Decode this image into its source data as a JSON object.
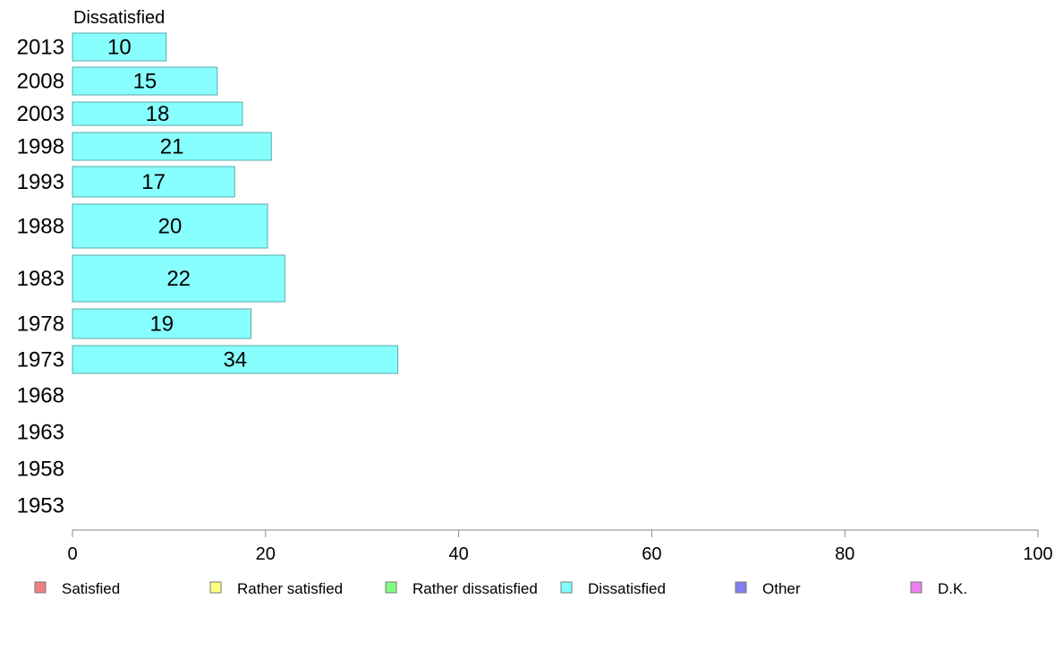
{
  "chart_data": {
    "type": "bar",
    "orientation": "horizontal",
    "title": "Dissatisfied",
    "categories": [
      "2013",
      "2008",
      "2003",
      "1998",
      "1993",
      "1988",
      "1983",
      "1978",
      "1973",
      "1968",
      "1963",
      "1958",
      "1953"
    ],
    "series": [
      {
        "name": "Dissatisfied",
        "values": [
          10,
          15,
          18,
          21,
          17,
          20,
          22,
          19,
          34,
          null,
          null,
          null,
          null
        ],
        "labels": [
          "10",
          "15",
          "18",
          "21",
          "17",
          "20",
          "22",
          "19",
          "34",
          "",
          "",
          "",
          ""
        ],
        "plotted": [
          9.7,
          15.0,
          17.6,
          20.6,
          16.8,
          20.2,
          22.0,
          18.5,
          33.7,
          null,
          null,
          null,
          null
        ]
      }
    ],
    "xlim": [
      0,
      100
    ],
    "xticks": [
      "0",
      "20",
      "40",
      "60",
      "80",
      "100"
    ],
    "grid": false,
    "legend": {
      "placement": "bottom",
      "entries": [
        {
          "label": "Satisfied",
          "color": "#f08080"
        },
        {
          "label": "Rather satisfied",
          "color": "#ffff80"
        },
        {
          "label": "Rather dissatisfied",
          "color": "#80ff80"
        },
        {
          "label": "Dissatisfied",
          "color": "#80ffff"
        },
        {
          "label": "Other",
          "color": "#8080f0"
        },
        {
          "label": "D.K.",
          "color": "#f080f0"
        }
      ]
    },
    "colors": {
      "bar_fill": "#88ffff",
      "bar_stroke": "#5aa9a9",
      "axis": "#888888"
    }
  }
}
